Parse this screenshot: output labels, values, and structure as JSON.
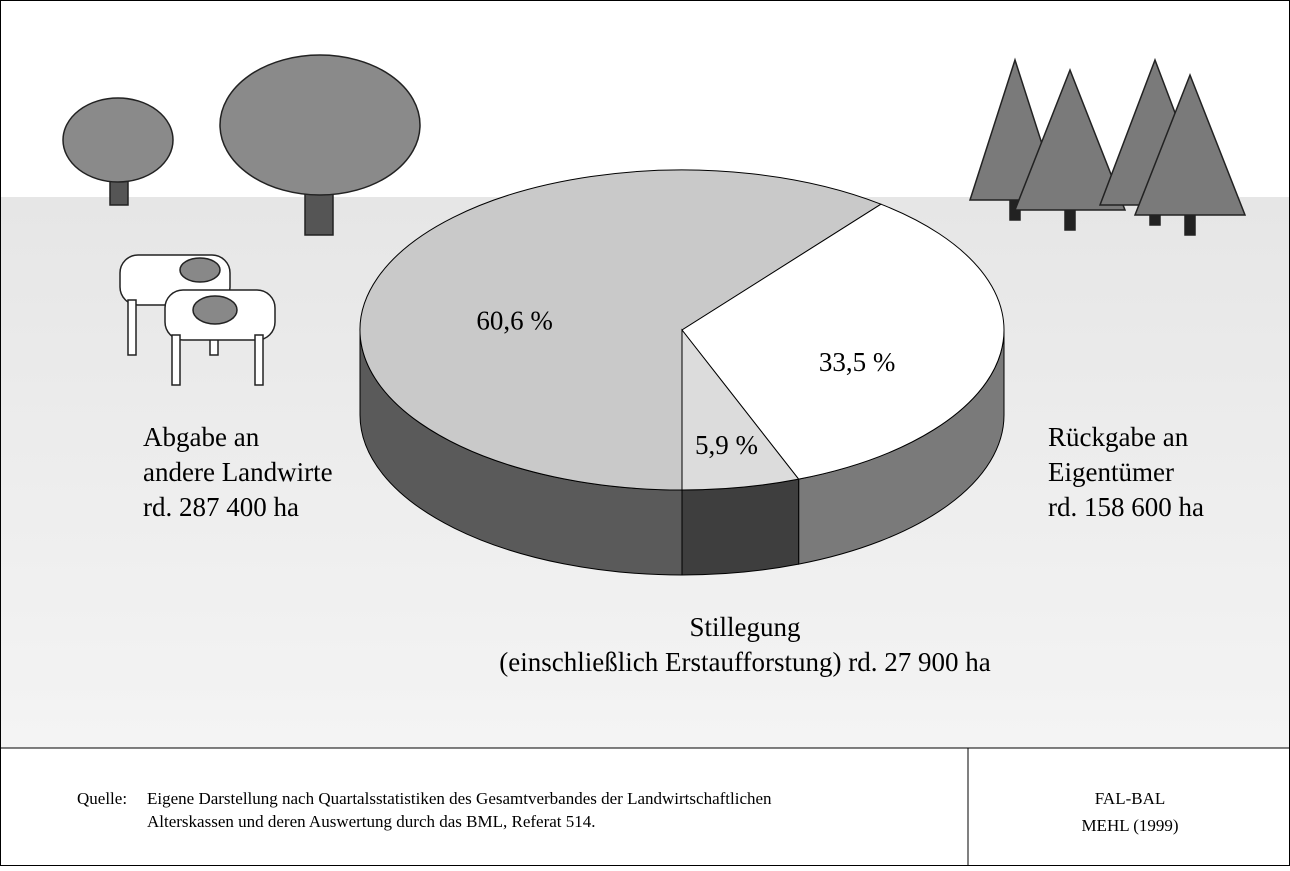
{
  "chart_data": {
    "type": "pie3d",
    "categories": [
      [
        "Abgabe an",
        "andere Landwirte",
        "rd. 287 400 ha"
      ],
      [
        "Rückgabe an",
        "Eigentümer",
        "rd. 158 600 ha"
      ],
      [
        "Stillegung",
        "(einschließlich Erstaufforstung) rd. 27 900 ha"
      ]
    ],
    "values": [
      60.6,
      33.5,
      5.9
    ],
    "value_labels": [
      "60,6 %",
      "33,5 %",
      "5,9 %"
    ],
    "colors": [
      "#c9c9c9",
      "#ffffff",
      "#dcdcdc"
    ],
    "side_colors": [
      "#5a5a5a",
      "#7a7a7a",
      "#3e3e3e"
    ]
  },
  "footer": {
    "source_label": "Quelle:",
    "source_lines": [
      "Eigene Darstellung nach Quartalsstatistiken des Gesamtverbandes der Landwirtschaftlichen",
      "Alterskassen und deren Auswertung durch das BML, Referat 514."
    ],
    "credit_lines": [
      "FAL-BAL",
      "MEHL (1999)"
    ]
  }
}
